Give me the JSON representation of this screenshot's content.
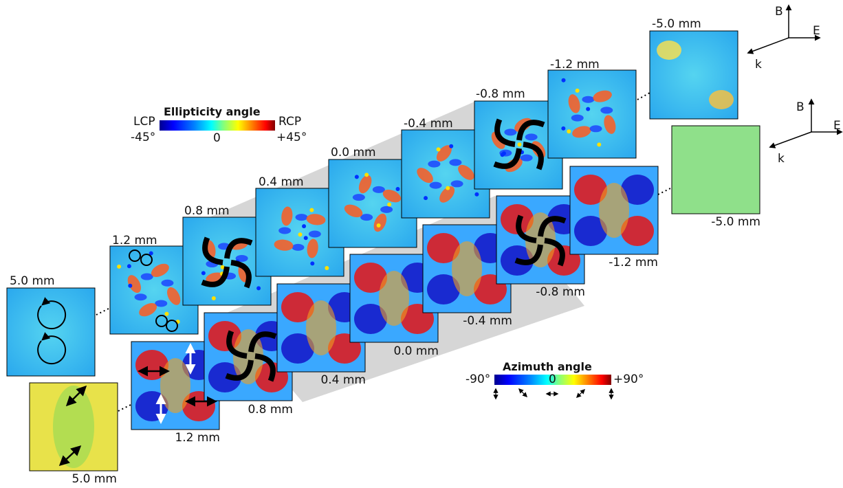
{
  "ellipticity_colorbar": {
    "title": "Ellipticity angle",
    "left_top": "LCP",
    "left_bottom": "-45°",
    "middle": "0",
    "right_top": "RCP",
    "right_bottom": "+45°"
  },
  "azimuth_colorbar": {
    "title": "Azimuth angle",
    "left": "-90°",
    "middle": "0",
    "right": "+90°"
  },
  "axes": {
    "b": "B",
    "e": "E",
    "k": "k"
  },
  "ellipticity_panels": [
    "5.0 mm",
    "1.2 mm",
    "0.8 mm",
    "0.4 mm",
    "0.0 mm",
    "-0.4 mm",
    "-0.8 mm",
    "-1.2 mm",
    "-5.0 mm"
  ],
  "azimuth_panels": [
    "5.0 mm",
    "1.2 mm",
    "0.8 mm",
    "0.4 mm",
    "0.0 mm",
    "-0.4 mm",
    "-0.8 mm",
    "-1.2 mm",
    "-5.0 mm"
  ],
  "colors": {
    "jet": [
      "#00008f",
      "#0000ff",
      "#0080ff",
      "#00ffff",
      "#80ff80",
      "#ffff00",
      "#ff8000",
      "#ff0000",
      "#800000"
    ],
    "band": "#d4d4d4"
  }
}
